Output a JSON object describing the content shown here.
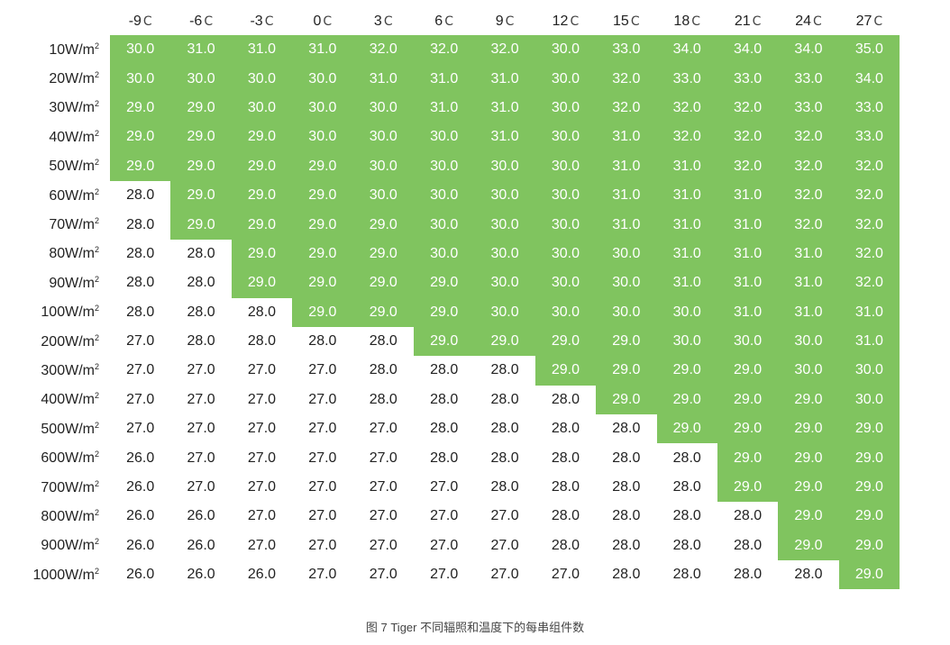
{
  "colors": {
    "highlight": "#80c45f",
    "highlight_text": "#ffffff",
    "text": "#222222"
  },
  "table": {
    "corner": "",
    "temperatures": [
      {
        "value": "-9",
        "unit": "C"
      },
      {
        "value": "-6",
        "unit": "C"
      },
      {
        "value": "-3",
        "unit": "C"
      },
      {
        "value": "0",
        "unit": "C"
      },
      {
        "value": "3",
        "unit": "C"
      },
      {
        "value": "6",
        "unit": "C"
      },
      {
        "value": "9",
        "unit": "C"
      },
      {
        "value": "12",
        "unit": "C"
      },
      {
        "value": "15",
        "unit": "C"
      },
      {
        "value": "18",
        "unit": "C"
      },
      {
        "value": "21",
        "unit": "C"
      },
      {
        "value": "24",
        "unit": "C"
      },
      {
        "value": "27",
        "unit": "C"
      }
    ],
    "rows": [
      {
        "irr": "10W/m",
        "sup": "2",
        "start": 0,
        "values": [
          "30.0",
          "31.0",
          "31.0",
          "31.0",
          "32.0",
          "32.0",
          "32.0",
          "30.0",
          "33.0",
          "34.0",
          "34.0",
          "34.0",
          "35.0"
        ]
      },
      {
        "irr": "20W/m",
        "sup": "2",
        "start": 0,
        "values": [
          "30.0",
          "30.0",
          "30.0",
          "30.0",
          "31.0",
          "31.0",
          "31.0",
          "30.0",
          "32.0",
          "33.0",
          "33.0",
          "33.0",
          "34.0"
        ]
      },
      {
        "irr": "30W/m",
        "sup": "2",
        "start": 0,
        "values": [
          "29.0",
          "29.0",
          "30.0",
          "30.0",
          "30.0",
          "31.0",
          "31.0",
          "30.0",
          "32.0",
          "32.0",
          "32.0",
          "33.0",
          "33.0"
        ]
      },
      {
        "irr": "40W/m",
        "sup": "2",
        "start": 0,
        "values": [
          "29.0",
          "29.0",
          "29.0",
          "30.0",
          "30.0",
          "30.0",
          "31.0",
          "30.0",
          "31.0",
          "32.0",
          "32.0",
          "32.0",
          "33.0"
        ]
      },
      {
        "irr": "50W/m",
        "sup": "2",
        "start": 0,
        "values": [
          "29.0",
          "29.0",
          "29.0",
          "29.0",
          "30.0",
          "30.0",
          "30.0",
          "30.0",
          "31.0",
          "31.0",
          "32.0",
          "32.0",
          "32.0"
        ]
      },
      {
        "irr": "60W/m",
        "sup": "2",
        "start": 1,
        "values": [
          "28.0",
          "29.0",
          "29.0",
          "29.0",
          "30.0",
          "30.0",
          "30.0",
          "30.0",
          "31.0",
          "31.0",
          "31.0",
          "32.0",
          "32.0"
        ]
      },
      {
        "irr": "70W/m",
        "sup": "2",
        "start": 1,
        "values": [
          "28.0",
          "29.0",
          "29.0",
          "29.0",
          "29.0",
          "30.0",
          "30.0",
          "30.0",
          "31.0",
          "31.0",
          "31.0",
          "32.0",
          "32.0"
        ]
      },
      {
        "irr": "80W/m",
        "sup": "2",
        "start": 2,
        "values": [
          "28.0",
          "28.0",
          "29.0",
          "29.0",
          "29.0",
          "30.0",
          "30.0",
          "30.0",
          "30.0",
          "31.0",
          "31.0",
          "31.0",
          "32.0"
        ]
      },
      {
        "irr": "90W/m",
        "sup": "2",
        "start": 2,
        "values": [
          "28.0",
          "28.0",
          "29.0",
          "29.0",
          "29.0",
          "29.0",
          "30.0",
          "30.0",
          "30.0",
          "31.0",
          "31.0",
          "31.0",
          "32.0"
        ]
      },
      {
        "irr": "100W/m",
        "sup": "2",
        "start": 3,
        "values": [
          "28.0",
          "28.0",
          "28.0",
          "29.0",
          "29.0",
          "29.0",
          "30.0",
          "30.0",
          "30.0",
          "30.0",
          "31.0",
          "31.0",
          "31.0"
        ]
      },
      {
        "irr": "200W/m",
        "sup": "2",
        "start": 5,
        "values": [
          "27.0",
          "28.0",
          "28.0",
          "28.0",
          "28.0",
          "29.0",
          "29.0",
          "29.0",
          "29.0",
          "30.0",
          "30.0",
          "30.0",
          "31.0"
        ]
      },
      {
        "irr": "300W/m",
        "sup": "2",
        "start": 7,
        "values": [
          "27.0",
          "27.0",
          "27.0",
          "27.0",
          "28.0",
          "28.0",
          "28.0",
          "29.0",
          "29.0",
          "29.0",
          "29.0",
          "30.0",
          "30.0"
        ]
      },
      {
        "irr": "400W/m",
        "sup": "2",
        "start": 8,
        "values": [
          "27.0",
          "27.0",
          "27.0",
          "27.0",
          "28.0",
          "28.0",
          "28.0",
          "28.0",
          "29.0",
          "29.0",
          "29.0",
          "29.0",
          "30.0"
        ]
      },
      {
        "irr": "500W/m",
        "sup": "2",
        "start": 9,
        "values": [
          "27.0",
          "27.0",
          "27.0",
          "27.0",
          "27.0",
          "28.0",
          "28.0",
          "28.0",
          "28.0",
          "29.0",
          "29.0",
          "29.0",
          "29.0"
        ]
      },
      {
        "irr": "600W/m",
        "sup": "2",
        "start": 10,
        "values": [
          "26.0",
          "27.0",
          "27.0",
          "27.0",
          "27.0",
          "28.0",
          "28.0",
          "28.0",
          "28.0",
          "28.0",
          "29.0",
          "29.0",
          "29.0"
        ]
      },
      {
        "irr": "700W/m",
        "sup": "2",
        "start": 10,
        "values": [
          "26.0",
          "27.0",
          "27.0",
          "27.0",
          "27.0",
          "27.0",
          "28.0",
          "28.0",
          "28.0",
          "28.0",
          "29.0",
          "29.0",
          "29.0"
        ]
      },
      {
        "irr": "800W/m",
        "sup": "2",
        "start": 11,
        "values": [
          "26.0",
          "26.0",
          "27.0",
          "27.0",
          "27.0",
          "27.0",
          "27.0",
          "28.0",
          "28.0",
          "28.0",
          "28.0",
          "29.0",
          "29.0"
        ]
      },
      {
        "irr": "900W/m",
        "sup": "2",
        "start": 11,
        "values": [
          "26.0",
          "26.0",
          "27.0",
          "27.0",
          "27.0",
          "27.0",
          "27.0",
          "28.0",
          "28.0",
          "28.0",
          "28.0",
          "29.0",
          "29.0"
        ]
      },
      {
        "irr": "1000W/m",
        "sup": "2",
        "start": 12,
        "values": [
          "26.0",
          "26.0",
          "26.0",
          "27.0",
          "27.0",
          "27.0",
          "27.0",
          "27.0",
          "28.0",
          "28.0",
          "28.0",
          "28.0",
          "29.0"
        ]
      }
    ]
  },
  "caption": "图 7 Tiger 不同辐照和温度下的每串组件数"
}
